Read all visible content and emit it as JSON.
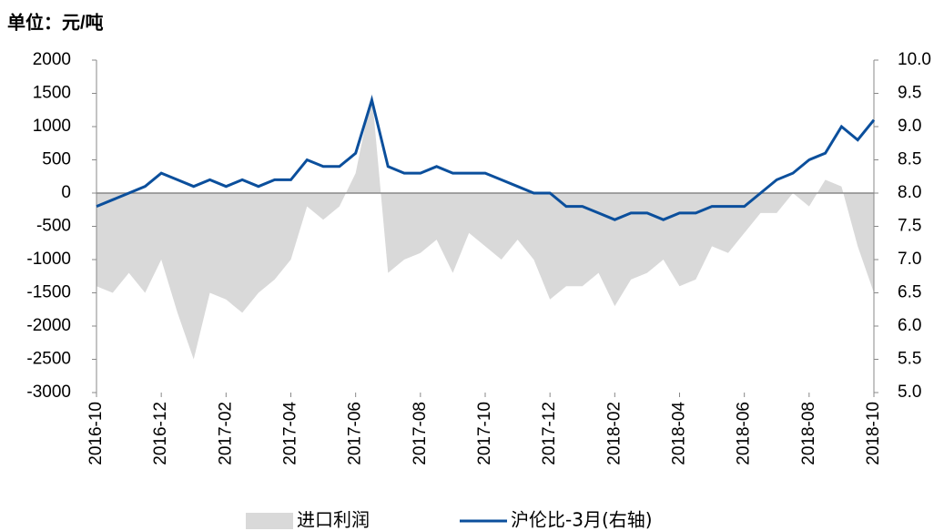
{
  "chart_data": {
    "type": "line",
    "unit_label": "单位：元/吨",
    "categories": [
      "2016-10",
      null,
      null,
      null,
      "2016-12",
      null,
      null,
      null,
      "2017-02",
      null,
      null,
      null,
      "2017-04",
      null,
      null,
      null,
      "2017-06",
      null,
      null,
      null,
      "2017-08",
      null,
      null,
      null,
      "2017-10",
      null,
      null,
      null,
      "2017-12",
      null,
      null,
      null,
      "2018-02",
      null,
      null,
      null,
      "2018-04",
      null,
      null,
      null,
      "2018-06",
      null,
      null,
      null,
      "2018-08",
      null,
      null,
      null,
      "2018-10"
    ],
    "series": [
      {
        "name": "进口利润",
        "kind": "area",
        "color": "#d9d9d9",
        "axis": "y",
        "values": [
          -1400,
          -1500,
          -1200,
          -1500,
          -1000,
          -1800,
          -2500,
          -1500,
          -1600,
          -1800,
          -1500,
          -1300,
          -1000,
          -200,
          -400,
          -200,
          300,
          1500,
          -1200,
          -1000,
          -900,
          -700,
          -1200,
          -600,
          -800,
          -1000,
          -700,
          -1000,
          -1600,
          -1400,
          -1400,
          -1200,
          -1700,
          -1300,
          -1200,
          -1000,
          -1400,
          -1300,
          -800,
          -900,
          -600,
          -300,
          -300,
          0,
          -200,
          200,
          100,
          -800,
          -1500
        ]
      },
      {
        "name": "沪伦比-3月(右轴)",
        "kind": "line",
        "color": "#0b4f9c",
        "axis": "y2",
        "values": [
          7.8,
          7.9,
          8.0,
          8.1,
          8.3,
          8.2,
          8.1,
          8.2,
          8.1,
          8.2,
          8.1,
          8.2,
          8.2,
          8.5,
          8.4,
          8.4,
          8.6,
          9.4,
          8.4,
          8.3,
          8.3,
          8.4,
          8.3,
          8.3,
          8.3,
          8.2,
          8.1,
          8.0,
          8.0,
          7.8,
          7.8,
          7.7,
          7.6,
          7.7,
          7.7,
          7.6,
          7.7,
          7.7,
          7.8,
          7.8,
          7.8,
          8.0,
          8.2,
          8.3,
          8.5,
          8.6,
          9.0,
          8.8,
          9.1
        ]
      }
    ],
    "ylim": [
      -3000,
      2000
    ],
    "yticks": [
      -3000,
      -2500,
      -2000,
      -1500,
      -1000,
      -500,
      0,
      500,
      1000,
      1500,
      2000
    ],
    "y2lim": [
      5.0,
      10.0
    ],
    "y2ticks": [
      {
        "value": 5.0,
        "label": "5.0"
      },
      5.5,
      {
        "value": 6.0,
        "label": "6.0"
      },
      6.5,
      {
        "value": 7.0,
        "label": "7.0"
      },
      7.5,
      {
        "value": 8.0,
        "label": "8.0"
      },
      8.5,
      {
        "value": 9.0,
        "label": "9.0"
      },
      9.5,
      {
        "value": 10.0,
        "label": "10.0"
      }
    ],
    "grid": false
  }
}
